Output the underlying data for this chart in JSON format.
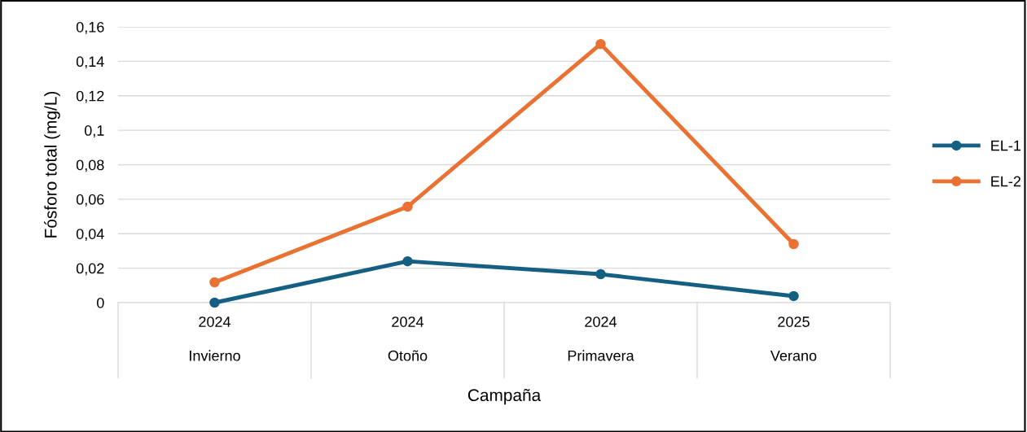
{
  "chart_data": {
    "type": "line",
    "xlabel": "Campaña",
    "ylabel": "Fósforo total (mg/L)",
    "categories": [
      "2024\nInvierno",
      "2024\nOtoño",
      "2024\nPrimavera",
      "2025\nVerano"
    ],
    "series": [
      {
        "name": "EL-1",
        "color": "#156082",
        "values": [
          0.0,
          0.024,
          0.0165,
          0.0038
        ]
      },
      {
        "name": "EL-2",
        "color": "#e97132",
        "values": [
          0.0118,
          0.0557,
          0.15,
          0.034
        ]
      }
    ],
    "ylim": [
      0,
      0.16
    ],
    "yticks": [
      {
        "value": 0,
        "label": "0"
      },
      {
        "value": 0.02,
        "label": "0,02"
      },
      {
        "value": 0.04,
        "label": "0,04"
      },
      {
        "value": 0.06,
        "label": "0,06"
      },
      {
        "value": 0.08,
        "label": "0,08"
      },
      {
        "value": 0.1,
        "label": "0,1"
      },
      {
        "value": 0.12,
        "label": "0,12"
      },
      {
        "value": 0.14,
        "label": "0,14"
      },
      {
        "value": 0.16,
        "label": "0,16"
      }
    ],
    "grid": "y",
    "legend": "right",
    "marker": "circle",
    "line_style": "solid"
  }
}
